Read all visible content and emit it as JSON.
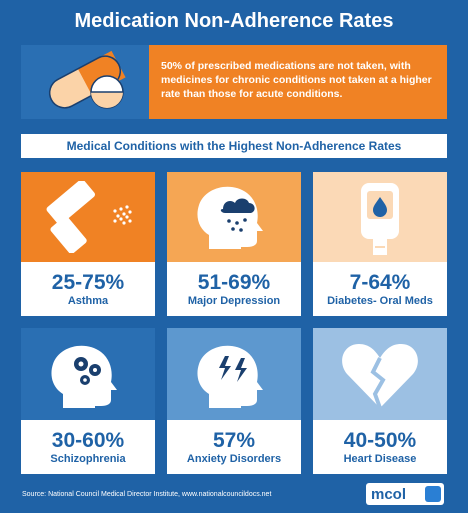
{
  "title": "Medication Non-Adherence Rates",
  "hero": {
    "icon": "pill-capsule-icon",
    "text": "50% of prescribed medications are not taken, with medicines for chronic conditions not taken at a higher rate than those for acute conditions."
  },
  "subtitle": "Medical Conditions with the Highest Non-Adherence Rates",
  "cards": [
    {
      "pct": "25-75%",
      "label": "Asthma",
      "icon": "inhaler-icon",
      "bg": "#f08224"
    },
    {
      "pct": "51-69%",
      "label": "Major Depression",
      "icon": "head-raincloud-icon",
      "bg": "#f5a654"
    },
    {
      "pct": "7-64%",
      "label": "Diabetes- Oral Meds",
      "icon": "glucose-meter-icon",
      "bg": "#fbd9b6"
    },
    {
      "pct": "30-60%",
      "label": "Schizophrenia",
      "icon": "head-gears-icon",
      "bg": "#2a6fb3"
    },
    {
      "pct": "57%",
      "label": "Anxiety Disorders",
      "icon": "head-lightning-icon",
      "bg": "#5d98cf"
    },
    {
      "pct": "40-50%",
      "label": "Heart Disease",
      "icon": "broken-heart-icon",
      "bg": "#9cc0e3"
    }
  ],
  "footer": {
    "source": "Source:  National Council Medical Director Institute, www.nationalcouncildocs.net",
    "logo": "mcol"
  }
}
